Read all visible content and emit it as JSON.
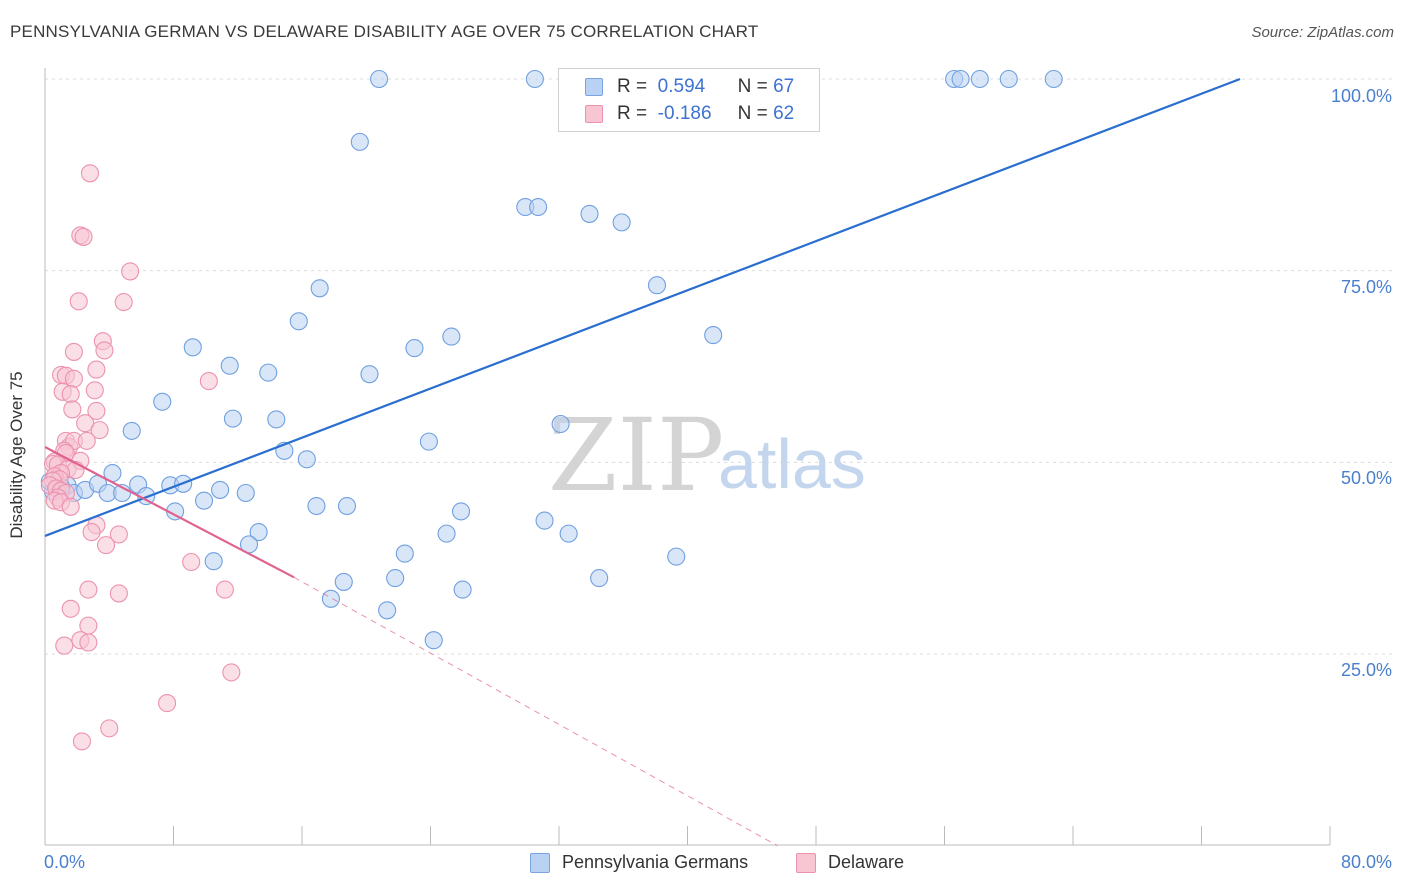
{
  "header": {
    "title": "PENNSYLVANIA GERMAN VS DELAWARE DISABILITY AGE OVER 75 CORRELATION CHART",
    "source": "Source: ZipAtlas.com"
  },
  "watermark": {
    "zip": "ZIP",
    "atlas": "atlas"
  },
  "legend": {
    "r_label": "R =",
    "n_label": "N =",
    "rows": [
      {
        "r": "0.594",
        "n": "67",
        "fill": "#b9d1f2",
        "stroke": "#7aa3e0"
      },
      {
        "r": "-0.186",
        "n": "62",
        "fill": "#f8c5d3",
        "stroke": "#ec92ae"
      }
    ]
  },
  "chart_data": {
    "type": "scatter",
    "title": "PENNSYLVANIA GERMAN VS DELAWARE DISABILITY AGE OVER 75 CORRELATION CHART",
    "xlabel": "",
    "ylabel": "Disability Age Over 75",
    "xlim": [
      0,
      80
    ],
    "ylim": [
      0,
      102
    ],
    "x_tick_labels": [
      "0.0%",
      "80.0%"
    ],
    "y_tick_labels": [
      "100.0%",
      "75.0%",
      "50.0%",
      "25.0%"
    ],
    "y_ticks": [
      100,
      75,
      50,
      25
    ],
    "grid": true,
    "legend_position": "top-center",
    "series": [
      {
        "name": "Pennsylvania Germans",
        "color": "#6fa0e0",
        "fill": "#b9d1f2",
        "trend": {
          "x0": 0,
          "y0": 40.4,
          "x1": 74.4,
          "y1": 100,
          "color": "#2a6fd0",
          "dashed": false
        },
        "points": [
          [
            20.8,
            100
          ],
          [
            30.5,
            100
          ],
          [
            56.6,
            100
          ],
          [
            57.0,
            100
          ],
          [
            58.2,
            100
          ],
          [
            60.0,
            100
          ],
          [
            62.8,
            100
          ],
          [
            19.6,
            91.8
          ],
          [
            29.9,
            83.3
          ],
          [
            30.7,
            83.3
          ],
          [
            33.9,
            82.4
          ],
          [
            35.9,
            81.3
          ],
          [
            38.1,
            73.1
          ],
          [
            17.1,
            72.7
          ],
          [
            15.8,
            68.4
          ],
          [
            41.6,
            66.6
          ],
          [
            25.3,
            66.4
          ],
          [
            23.0,
            64.9
          ],
          [
            9.2,
            65.0
          ],
          [
            11.5,
            62.6
          ],
          [
            13.9,
            61.7
          ],
          [
            20.2,
            61.5
          ],
          [
            7.3,
            57.9
          ],
          [
            11.7,
            55.7
          ],
          [
            14.4,
            55.6
          ],
          [
            32.1,
            55.0
          ],
          [
            5.4,
            54.1
          ],
          [
            23.9,
            52.7
          ],
          [
            14.9,
            51.5
          ],
          [
            16.3,
            50.4
          ],
          [
            4.2,
            48.6
          ],
          [
            0.8,
            46.5
          ],
          [
            1.4,
            47.0
          ],
          [
            1.8,
            46.0
          ],
          [
            2.5,
            46.4
          ],
          [
            3.3,
            47.2
          ],
          [
            3.9,
            46.0
          ],
          [
            4.8,
            46.0
          ],
          [
            5.8,
            47.1
          ],
          [
            6.3,
            45.6
          ],
          [
            7.8,
            47.0
          ],
          [
            8.6,
            47.2
          ],
          [
            9.9,
            45.0
          ],
          [
            10.9,
            46.4
          ],
          [
            12.5,
            46.0
          ],
          [
            8.1,
            43.6
          ],
          [
            16.9,
            44.3
          ],
          [
            18.8,
            44.3
          ],
          [
            25.9,
            43.6
          ],
          [
            31.1,
            42.4
          ],
          [
            13.3,
            40.9
          ],
          [
            25.0,
            40.7
          ],
          [
            32.6,
            40.7
          ],
          [
            12.7,
            39.3
          ],
          [
            22.4,
            38.1
          ],
          [
            39.3,
            37.7
          ],
          [
            10.5,
            37.1
          ],
          [
            18.6,
            34.4
          ],
          [
            21.8,
            34.9
          ],
          [
            34.5,
            34.9
          ],
          [
            26.0,
            33.4
          ],
          [
            17.8,
            32.2
          ],
          [
            21.3,
            30.7
          ],
          [
            24.2,
            26.8
          ],
          [
            0.5,
            46.2
          ],
          [
            1.0,
            46.8
          ],
          [
            0.3,
            47.5
          ]
        ]
      },
      {
        "name": "Delaware",
        "color": "#ec92ae",
        "fill": "#f8c5d3",
        "trend": {
          "x0": 0,
          "y0": 52.0,
          "x1": 15.5,
          "y1": 35.0,
          "color": "#e0628f",
          "dashed": false,
          "ext": {
            "x0": 15.5,
            "y0": 35.0,
            "x1": 45.6,
            "y1": 0
          }
        },
        "points": [
          [
            2.8,
            87.7
          ],
          [
            2.2,
            79.6
          ],
          [
            2.4,
            79.4
          ],
          [
            5.3,
            74.9
          ],
          [
            2.1,
            71.0
          ],
          [
            4.9,
            70.9
          ],
          [
            3.6,
            65.8
          ],
          [
            3.7,
            64.6
          ],
          [
            1.8,
            64.4
          ],
          [
            10.2,
            60.6
          ],
          [
            1.0,
            61.4
          ],
          [
            1.3,
            61.3
          ],
          [
            1.8,
            60.9
          ],
          [
            3.2,
            62.1
          ],
          [
            1.1,
            59.2
          ],
          [
            3.1,
            59.4
          ],
          [
            1.6,
            58.9
          ],
          [
            1.7,
            56.9
          ],
          [
            3.2,
            56.7
          ],
          [
            2.5,
            55.1
          ],
          [
            3.4,
            54.2
          ],
          [
            1.3,
            52.8
          ],
          [
            1.5,
            52.0
          ],
          [
            1.8,
            52.8
          ],
          [
            2.6,
            52.8
          ],
          [
            1.2,
            51.5
          ],
          [
            1.3,
            51.2
          ],
          [
            0.6,
            50.1
          ],
          [
            2.2,
            50.2
          ],
          [
            0.5,
            49.8
          ],
          [
            0.8,
            49.7
          ],
          [
            1.4,
            49.1
          ],
          [
            1.9,
            49.0
          ],
          [
            1.0,
            48.6
          ],
          [
            0.6,
            48.2
          ],
          [
            0.9,
            47.8
          ],
          [
            0.5,
            47.6
          ],
          [
            0.3,
            47.0
          ],
          [
            0.7,
            46.6
          ],
          [
            1.0,
            46.3
          ],
          [
            1.3,
            46.0
          ],
          [
            0.8,
            45.4
          ],
          [
            0.6,
            45.0
          ],
          [
            1.0,
            44.8
          ],
          [
            1.6,
            44.2
          ],
          [
            3.2,
            41.8
          ],
          [
            2.9,
            40.9
          ],
          [
            4.6,
            40.6
          ],
          [
            3.8,
            39.2
          ],
          [
            9.1,
            37.0
          ],
          [
            11.2,
            33.4
          ],
          [
            2.7,
            33.4
          ],
          [
            4.6,
            32.9
          ],
          [
            1.6,
            30.9
          ],
          [
            2.7,
            28.7
          ],
          [
            2.2,
            26.8
          ],
          [
            2.7,
            26.5
          ],
          [
            1.2,
            26.1
          ],
          [
            11.6,
            22.6
          ],
          [
            7.6,
            18.6
          ],
          [
            4.0,
            15.3
          ],
          [
            2.3,
            13.6
          ]
        ]
      }
    ]
  }
}
